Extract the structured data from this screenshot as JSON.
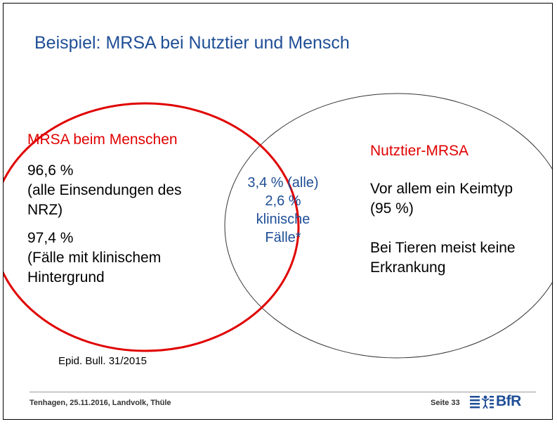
{
  "title": "Beispiel: MRSA bei Nutztier und Mensch",
  "left_circle": {
    "heading": "MRSA beim Menschen",
    "stat1_line1": "96,6 %",
    "stat1_line2": "(alle Einsendungen des",
    "stat1_line3": "NRZ)",
    "stat2_line1": "97,4 %",
    "stat2_line2": "(Fälle mit klinischem",
    "stat2_line3": "Hintergrund",
    "color": "#e00000"
  },
  "overlap": {
    "line1": "3,4 % (alle)",
    "line2": "2,6 %",
    "line3": "klinische",
    "line4": "Fälle*",
    "color": "#1f4e96"
  },
  "right_circle": {
    "heading": "Nutztier-MRSA",
    "text1_line1": "Vor allem ein Keimtyp",
    "text1_line2": "(95 %)",
    "text2_line1": "Bei Tieren meist keine",
    "text2_line2": "Erkrankung"
  },
  "source": "Epid. Bull. 31/2015",
  "footer": {
    "left": "Tenhagen, 25.11.2016, Landvolk, Thüle",
    "page": "Seite 33",
    "logo_text": "BfR",
    "logo_icon": "bfr-logo-icon"
  }
}
